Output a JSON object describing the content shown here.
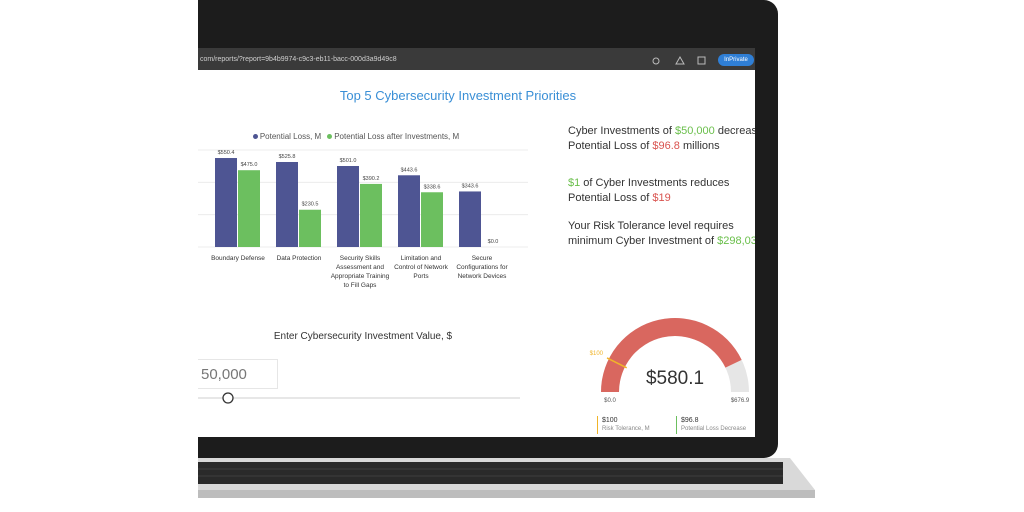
{
  "browser": {
    "url": "com/reports/?report=9b4b9974-c9c3-eb11-bacc-000d3a9d49c8",
    "badge": "InPrivate"
  },
  "report_title": "Top 5 Cybersecurity Investment Priorities",
  "bar_chart": {
    "type": "bar",
    "categories": [
      "Boundary Defense",
      "Data Protection",
      "Security Skills Assessment and Appropriate Training to Fill Gaps",
      "Limitation and Control of Network Ports",
      "Secure Configurations for Network Devices"
    ],
    "series": [
      {
        "name": "Potential Loss, M",
        "color": "#4e5593",
        "values": [
          550.4,
          525.8,
          501.0,
          443.6,
          343.6
        ],
        "value_labels": [
          "$550.4",
          "$525.8",
          "$501.0",
          "$443.6",
          "$343.6"
        ]
      },
      {
        "name": "Potential Loss after Investments, M",
        "color": "#6cbf5f",
        "values": [
          475.0,
          230.5,
          390.2,
          338.6,
          0.0
        ],
        "value_labels": [
          "$475.0",
          "$230.5",
          "$390.2",
          "$338.6",
          "$0.0"
        ]
      }
    ],
    "ylim": [
      0,
      600
    ],
    "yticks": [
      0,
      200,
      400,
      600
    ],
    "grid": true
  },
  "insights": [
    {
      "parts": [
        {
          "text": "Cyber Investments of "
        },
        {
          "text": "$50,000",
          "color": "#6abf4b"
        },
        {
          "text": " decrease Potential Loss of "
        },
        {
          "text": "$96.8",
          "color": "#d9534f"
        },
        {
          "text": " millions"
        }
      ]
    },
    {
      "parts": [
        {
          "text": "$1",
          "color": "#6abf4b"
        },
        {
          "text": " of Cyber Investments reduces Potential Loss of "
        },
        {
          "text": "$19",
          "color": "#d9534f"
        }
      ]
    },
    {
      "parts": [
        {
          "text": "Your Risk Tolerance level requires minimum Cyber Investment of "
        },
        {
          "text": "$298,03",
          "color": "#6abf4b"
        }
      ]
    }
  ],
  "input": {
    "label": "Enter Cybersecurity Investment Value, $",
    "value": "50,000"
  },
  "gauge": {
    "value": 580.1,
    "value_label": "$580.1",
    "min": 0,
    "min_label": "$0.0",
    "max": 676.9,
    "max_label": "$676.9",
    "target": 100,
    "target_label": "$100",
    "color": "#d9675f",
    "target_color": "#f0b429"
  },
  "cards": [
    {
      "value": "$100",
      "label": "Risk Tolerance, M",
      "color": "#f0b429"
    },
    {
      "value": "$96.8",
      "label": "Potential Loss Decrease",
      "color": "#6cbf5f"
    }
  ]
}
